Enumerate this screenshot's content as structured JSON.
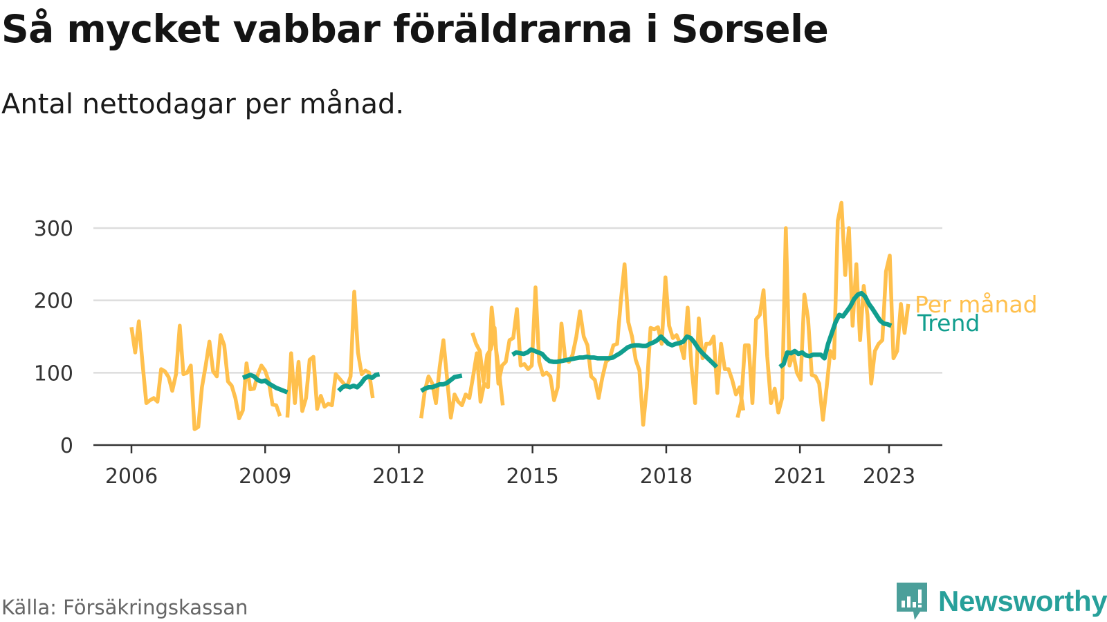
{
  "title": "Så mycket vabbar föräldrarna i Sorsele",
  "subtitle": "Antal nettodagar per månad.",
  "source": "Källa: Försäkringskassan",
  "brand": {
    "name": "Newsworthy",
    "icon": "newsworthy-logo-icon",
    "color": "#27a09a"
  },
  "colors": {
    "monthly": "#ffc04d",
    "trend": "#119e8e",
    "grid": "#dddddd",
    "axis": "#333333"
  },
  "chart_data": {
    "type": "line",
    "title": "Så mycket vabbar föräldrarna i Sorsele",
    "subtitle": "Antal nettodagar per månad.",
    "xlabel": "",
    "ylabel": "",
    "ylim": [
      0,
      320
    ],
    "xlim": [
      2005.1,
      2024.2
    ],
    "yticks": [
      0,
      100,
      200,
      300
    ],
    "xticks": [
      {
        "value": 2006,
        "label": "2006"
      },
      {
        "value": 2009,
        "label": "2009"
      },
      {
        "value": 2012,
        "label": "2012"
      },
      {
        "value": 2015,
        "label": "2015"
      },
      {
        "value": 2018,
        "label": "2018"
      },
      {
        "value": 2021,
        "label": "2021"
      },
      {
        "value": 2023,
        "label": "2023"
      }
    ],
    "grid": true,
    "legend": "inline-right",
    "series": [
      {
        "name": "Per månad",
        "segments": [
          {
            "start": 2006.0,
            "step": 0.0833,
            "values": [
              163,
              128,
              171,
              112,
              58,
              62,
              65,
              60,
              105,
              102,
              94,
              75,
              98,
              165,
              98,
              100,
              110,
              22,
              25,
              80,
              110,
              143,
              102,
              95,
              152,
              138,
              88,
              82,
              65,
              37,
              48,
              113,
              77,
              78,
              97,
              110,
              103,
              88,
              56,
              55,
              40
            ]
          },
          {
            "start": 2009.5,
            "step": 0.0833,
            "values": [
              38,
              127,
              58,
              115,
              47,
              65,
              118,
              122,
              50,
              68,
              53,
              57,
              55,
              98,
              92,
              86,
              80,
              95,
              212,
              128,
              98,
              103,
              100,
              65
            ]
          },
          {
            "start": 2012.5,
            "step": 0.0833,
            "values": [
              37,
              75,
              95,
              85,
              58,
              108,
              145,
              92,
              38,
              70,
              60,
              55,
              70,
              65,
              95,
              127,
              60,
              85,
              80,
              190,
              140,
              100,
              55
            ]
          },
          {
            "start": 2013.65,
            "step": 0.0833,
            "values": [
              155,
              140,
              130,
              88,
              125,
              133,
              162,
              85,
              110,
              115,
              145,
              148,
              188,
              110,
              112,
              105,
              110,
              218,
              115,
              97,
              100,
              95,
              62,
              80,
              168,
              120,
              115,
              125,
              150,
              185,
              150,
              138,
              95,
              90,
              65,
              93,
              115,
              120,
              138,
              140,
              200,
              250,
              170,
              150,
              118,
              103,
              28,
              80,
              162,
              160,
              163,
              140,
              232,
              165,
              148,
              152,
              140,
              120,
              190,
              110,
              58,
              175,
              120,
              140,
              140,
              150,
              72,
              140,
              105,
              105,
              90,
              70,
              80,
              48
            ]
          },
          {
            "start": 2019.6,
            "step": 0.0833,
            "values": [
              38,
              60,
              138,
              138,
              58,
              174,
              180,
              214,
              123,
              58,
              78,
              45,
              65,
              300,
              110,
              127,
              100,
              90,
              208,
              175,
              97,
              95,
              85,
              35,
              80,
              130,
              120,
              310,
              335,
              235,
              300,
              165,
              250,
              145,
              220,
              180,
              85,
              130,
              140,
              145,
              240,
              262,
              120,
              130,
              195,
              155,
              195
            ]
          }
        ]
      },
      {
        "name": "Trend",
        "segments": [
          {
            "start": 2008.5,
            "step": 0.0833,
            "values": [
              93,
              95,
              97,
              95,
              90,
              88,
              89,
              85,
              82,
              79,
              77,
              75,
              73
            ]
          },
          {
            "start": 2010.65,
            "step": 0.0833,
            "values": [
              75,
              80,
              82,
              80,
              82,
              80,
              85,
              92,
              95,
              93,
              97,
              98
            ]
          },
          {
            "start": 2012.5,
            "step": 0.0833,
            "values": [
              75,
              78,
              80,
              80,
              82,
              84,
              84,
              86,
              90,
              94,
              95,
              96
            ]
          },
          {
            "start": 2014.55,
            "step": 0.0833,
            "values": [
              125,
              128,
              127,
              126,
              128,
              132,
              130,
              128,
              126,
              120,
              116,
              115,
              115,
              116,
              117,
              118,
              119,
              120,
              121,
              121,
              122,
              121,
              121,
              120,
              120,
              120,
              120,
              121,
              124,
              127,
              131,
              135,
              137,
              138,
              138,
              137,
              137,
              140,
              142,
              145,
              150,
              145,
              140,
              138,
              140,
              141,
              143,
              150,
              148,
              142,
              134,
              128,
              123,
              118,
              113,
              108
            ]
          },
          {
            "start": 2020.55,
            "step": 0.0833,
            "values": [
              108,
              112,
              128,
              127,
              130,
              126,
              128,
              124,
              123,
              125,
              125,
              125,
              120,
              140,
              155,
              170,
              180,
              178,
              185,
              192,
              202,
              208,
              210,
              205,
              195,
              188,
              180,
              172,
              168,
              167,
              165
            ]
          }
        ]
      }
    ]
  }
}
